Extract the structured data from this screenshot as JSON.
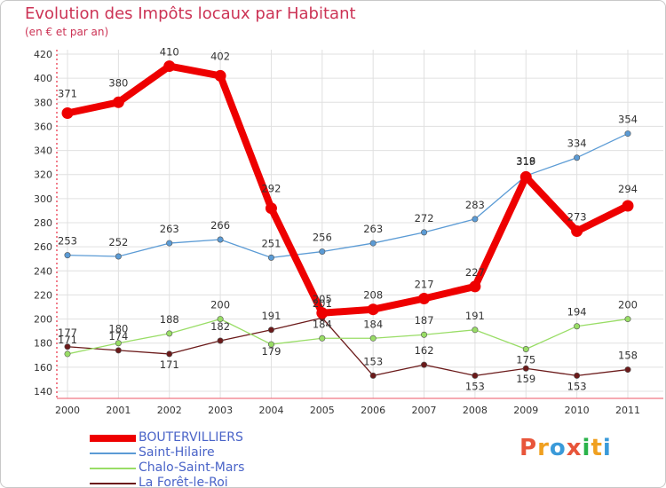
{
  "title": "Evolution des Impôts locaux par Habitant",
  "subtitle": "(en € et par an)",
  "logo": {
    "text": "Proxiti",
    "colors": [
      "#e8553a",
      "#f0a020",
      "#3a9ad9",
      "#e8553a",
      "#2ab34a",
      "#f0a020",
      "#3a9ad9"
    ]
  },
  "colors": {
    "BOUTERVILLIERS": "#ee0000",
    "Saint-Hilaire": "#5b9bd5",
    "Chalo-Saint-Mars": "#99dd66",
    "La Forêt-le-Roi": "#6b1a1a",
    "grid": "#e0e0e0",
    "axis": "#ee5566",
    "text": "#333333",
    "title": "#cc3355"
  },
  "chart_data": {
    "type": "line",
    "title": "Evolution des Impôts locaux par Habitant",
    "subtitle": "(en € et par an)",
    "xlabel": "",
    "ylabel": "",
    "x": [
      "2000",
      "2001",
      "2002",
      "2003",
      "2004",
      "2005",
      "2006",
      "2007",
      "2008",
      "2009",
      "2010",
      "2011"
    ],
    "ylim": [
      140,
      420
    ],
    "yticks": [
      140,
      160,
      180,
      200,
      220,
      240,
      260,
      280,
      300,
      320,
      340,
      360,
      380,
      400,
      420
    ],
    "grid": true,
    "legend_position": "bottom-left",
    "series": [
      {
        "name": "BOUTERVILLIERS",
        "values": [
          371,
          380,
          410,
          402,
          292,
          205,
          208,
          217,
          227,
          318,
          273,
          294
        ]
      },
      {
        "name": "Saint-Hilaire",
        "values": [
          253,
          252,
          263,
          266,
          251,
          256,
          263,
          272,
          283,
          319,
          334,
          354
        ]
      },
      {
        "name": "Chalo-Saint-Mars",
        "values": [
          171,
          180,
          188,
          200,
          179,
          184,
          184,
          187,
          191,
          175,
          194,
          200
        ]
      },
      {
        "name": "La Forêt-le-Roi",
        "values": [
          177,
          174,
          171,
          182,
          191,
          201,
          153,
          162,
          153,
          159,
          153,
          158
        ]
      }
    ]
  }
}
